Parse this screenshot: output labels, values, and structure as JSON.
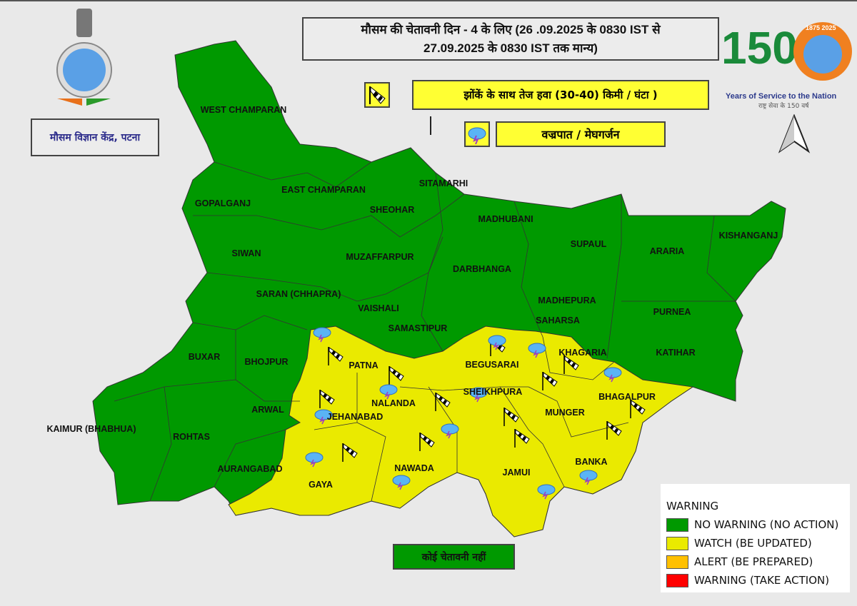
{
  "header": {
    "title_line1": "मौसम की चेतावनी दिन - 4 के लिए (26 .09.2025 के 0830 IST से",
    "title_line2": "27.09.2025 के 0830 IST तक मान्य)",
    "office": "मौसम विज्ञान केंद्र, पटना"
  },
  "branding": {
    "logo_150_number": "150",
    "years_text": "Years of Service to the Nation",
    "years_hindi": "राष्ट्र सेवा के 150 वर्ष",
    "badge_years": "1875 2025"
  },
  "symbols": {
    "wind_label": "झोंकें के साथ तेज हवा  (30-40) किमी / घंटा )",
    "wind_icon": "windsock-icon",
    "thunder_label": "वज्रपात / मेघगर्जन",
    "thunder_icon": "thunderstorm-cloud-icon"
  },
  "status_box": "कोई चेतावनी नहीं",
  "legend": {
    "title": "WARNING",
    "items": [
      {
        "label": "NO WARNING (NO ACTION)",
        "color": "#009900"
      },
      {
        "label": "WATCH (BE UPDATED)",
        "color": "#eaea00"
      },
      {
        "label": "ALERT (BE PREPARED)",
        "color": "#ffc000"
      },
      {
        "label": "WARNING (TAKE ACTION)",
        "color": "#ff0000"
      }
    ]
  },
  "districts": [
    {
      "name": "WEST CHAMPARAN",
      "level": "no-warning"
    },
    {
      "name": "EAST CHAMPARAN",
      "level": "no-warning"
    },
    {
      "name": "GOPALGANJ",
      "level": "no-warning"
    },
    {
      "name": "SITAMARHI",
      "level": "no-warning"
    },
    {
      "name": "SHEOHAR",
      "level": "no-warning"
    },
    {
      "name": "MADHUBANI",
      "level": "no-warning"
    },
    {
      "name": "SIWAN",
      "level": "no-warning"
    },
    {
      "name": "MUZAFFARPUR",
      "level": "no-warning"
    },
    {
      "name": "SUPAUL",
      "level": "no-warning"
    },
    {
      "name": "ARARIA",
      "level": "no-warning"
    },
    {
      "name": "KISHANGANJ",
      "level": "no-warning"
    },
    {
      "name": "DARBHANGA",
      "level": "no-warning"
    },
    {
      "name": "SARAN (CHHAPRA)",
      "level": "no-warning"
    },
    {
      "name": "VAISHALI",
      "level": "no-warning"
    },
    {
      "name": "SAMASTIPUR",
      "level": "no-warning"
    },
    {
      "name": "MADHEPURA",
      "level": "no-warning"
    },
    {
      "name": "SAHARSA",
      "level": "no-warning"
    },
    {
      "name": "PURNEA",
      "level": "no-warning"
    },
    {
      "name": "KATIHAR",
      "level": "no-warning"
    },
    {
      "name": "BUXAR",
      "level": "no-warning"
    },
    {
      "name": "BHOJPUR",
      "level": "no-warning"
    },
    {
      "name": "KAIMUR (BHABHUA)",
      "level": "no-warning"
    },
    {
      "name": "ROHTAS",
      "level": "no-warning"
    },
    {
      "name": "ARWAL",
      "level": "no-warning"
    },
    {
      "name": "AURANGABAD",
      "level": "no-warning"
    },
    {
      "name": "PATNA",
      "level": "watch"
    },
    {
      "name": "BEGUSARAI",
      "level": "watch"
    },
    {
      "name": "KHAGARIA",
      "level": "watch"
    },
    {
      "name": "NALANDA",
      "level": "watch"
    },
    {
      "name": "JEHANABAD",
      "level": "watch"
    },
    {
      "name": "SHEIKHPURA",
      "level": "watch"
    },
    {
      "name": "MUNGER",
      "level": "watch"
    },
    {
      "name": "BHAGALPUR",
      "level": "watch"
    },
    {
      "name": "GAYA",
      "level": "watch"
    },
    {
      "name": "NAWADA",
      "level": "watch"
    },
    {
      "name": "JAMUI",
      "level": "watch"
    },
    {
      "name": "BANKA",
      "level": "watch"
    }
  ]
}
